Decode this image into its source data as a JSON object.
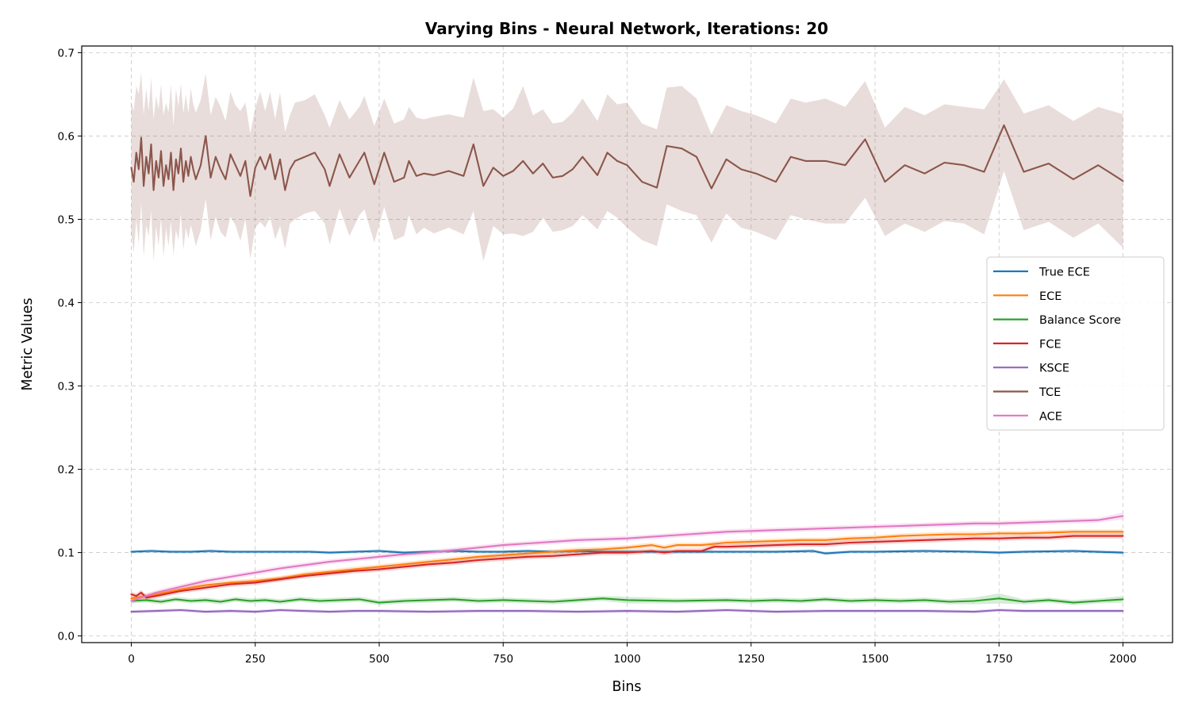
{
  "chart_data": {
    "type": "line",
    "title": "Varying Bins - Neural Network, Iterations: 20",
    "xlabel": "Bins",
    "ylabel": "Metric Values",
    "xlim": [
      -100,
      2100
    ],
    "ylim": [
      -0.008,
      0.708
    ],
    "xticks": [
      0,
      250,
      500,
      750,
      1000,
      1250,
      1500,
      1750,
      2000
    ],
    "xtick_labels": [
      "0",
      "250",
      "500",
      "750",
      "1000",
      "1250",
      "1500",
      "1750",
      "2000"
    ],
    "yticks": [
      0.0,
      0.1,
      0.2,
      0.3,
      0.4,
      0.5,
      0.6,
      0.7
    ],
    "ytick_labels": [
      "0.0",
      "0.1",
      "0.2",
      "0.3",
      "0.4",
      "0.5",
      "0.6",
      "0.7"
    ],
    "grid": true,
    "legend_position": "center-right",
    "series": [
      {
        "name": "True ECE",
        "color": "#1f77b4",
        "x": [
          0,
          40,
          80,
          120,
          160,
          200,
          240,
          280,
          320,
          360,
          400,
          450,
          500,
          550,
          600,
          650,
          700,
          750,
          800,
          850,
          900,
          950,
          1000,
          1100,
          1200,
          1300,
          1375,
          1400,
          1450,
          1500,
          1600,
          1700,
          1750,
          1800,
          1900,
          2000
        ],
        "y": [
          0.101,
          0.102,
          0.101,
          0.101,
          0.102,
          0.101,
          0.101,
          0.101,
          0.101,
          0.101,
          0.1,
          0.101,
          0.102,
          0.1,
          0.101,
          0.102,
          0.101,
          0.101,
          0.102,
          0.101,
          0.102,
          0.101,
          0.101,
          0.101,
          0.101,
          0.101,
          0.102,
          0.099,
          0.101,
          0.101,
          0.102,
          0.101,
          0.1,
          0.101,
          0.102,
          0.1
        ],
        "band": [
          0.002,
          0.002,
          0.002,
          0.002,
          0.002,
          0.002,
          0.002,
          0.002,
          0.002,
          0.002,
          0.002,
          0.002,
          0.002,
          0.002,
          0.002,
          0.002,
          0.002,
          0.002,
          0.002,
          0.002,
          0.002,
          0.002,
          0.002,
          0.002,
          0.002,
          0.002,
          0.002,
          0.002,
          0.002,
          0.002,
          0.002,
          0.002,
          0.002,
          0.002,
          0.002,
          0.002
        ]
      },
      {
        "name": "ECE",
        "color": "#ff7f0e",
        "x": [
          0,
          50,
          100,
          150,
          200,
          250,
          300,
          350,
          400,
          450,
          500,
          550,
          600,
          650,
          700,
          750,
          800,
          850,
          900,
          950,
          1000,
          1050,
          1075,
          1100,
          1150,
          1200,
          1250,
          1300,
          1350,
          1400,
          1450,
          1500,
          1550,
          1600,
          1650,
          1700,
          1750,
          1800,
          1850,
          1900,
          1950,
          2000
        ],
        "y": [
          0.045,
          0.05,
          0.056,
          0.061,
          0.064,
          0.066,
          0.069,
          0.074,
          0.077,
          0.08,
          0.083,
          0.086,
          0.089,
          0.092,
          0.095,
          0.097,
          0.099,
          0.101,
          0.103,
          0.104,
          0.106,
          0.109,
          0.106,
          0.109,
          0.109,
          0.112,
          0.113,
          0.114,
          0.115,
          0.115,
          0.117,
          0.118,
          0.12,
          0.121,
          0.122,
          0.122,
          0.123,
          0.123,
          0.124,
          0.125,
          0.125,
          0.125
        ],
        "band": [
          0.003,
          0.003,
          0.003,
          0.003,
          0.003,
          0.003,
          0.003,
          0.003,
          0.003,
          0.003,
          0.003,
          0.003,
          0.003,
          0.003,
          0.003,
          0.003,
          0.003,
          0.003,
          0.003,
          0.003,
          0.003,
          0.003,
          0.003,
          0.003,
          0.003,
          0.003,
          0.003,
          0.003,
          0.003,
          0.003,
          0.003,
          0.003,
          0.003,
          0.003,
          0.003,
          0.003,
          0.003,
          0.003,
          0.003,
          0.003,
          0.003,
          0.003
        ]
      },
      {
        "name": "Balance Score",
        "color": "#2ca02c",
        "x": [
          0,
          30,
          60,
          90,
          120,
          150,
          180,
          210,
          240,
          270,
          300,
          340,
          380,
          420,
          460,
          500,
          550,
          600,
          650,
          700,
          750,
          800,
          850,
          900,
          950,
          1000,
          1100,
          1200,
          1250,
          1300,
          1350,
          1400,
          1450,
          1500,
          1550,
          1600,
          1650,
          1700,
          1750,
          1800,
          1850,
          1900,
          1950,
          2000
        ],
        "y": [
          0.042,
          0.043,
          0.041,
          0.044,
          0.042,
          0.043,
          0.041,
          0.044,
          0.042,
          0.043,
          0.041,
          0.044,
          0.042,
          0.043,
          0.044,
          0.04,
          0.042,
          0.043,
          0.044,
          0.042,
          0.043,
          0.042,
          0.041,
          0.043,
          0.045,
          0.043,
          0.042,
          0.043,
          0.042,
          0.043,
          0.042,
          0.044,
          0.042,
          0.043,
          0.042,
          0.043,
          0.041,
          0.042,
          0.045,
          0.041,
          0.043,
          0.04,
          0.042,
          0.044
        ],
        "band": [
          0.003,
          0.003,
          0.003,
          0.003,
          0.003,
          0.003,
          0.003,
          0.003,
          0.003,
          0.003,
          0.003,
          0.003,
          0.003,
          0.003,
          0.003,
          0.003,
          0.003,
          0.003,
          0.003,
          0.003,
          0.003,
          0.003,
          0.003,
          0.003,
          0.003,
          0.004,
          0.003,
          0.003,
          0.003,
          0.003,
          0.003,
          0.003,
          0.003,
          0.003,
          0.003,
          0.003,
          0.003,
          0.004,
          0.006,
          0.003,
          0.003,
          0.003,
          0.003,
          0.004
        ]
      },
      {
        "name": "FCE",
        "color": "#d62728",
        "x": [
          0,
          10,
          20,
          30,
          50,
          100,
          150,
          200,
          250,
          300,
          350,
          400,
          450,
          500,
          550,
          600,
          650,
          700,
          750,
          800,
          850,
          900,
          950,
          1000,
          1050,
          1075,
          1100,
          1150,
          1175,
          1200,
          1250,
          1300,
          1350,
          1400,
          1450,
          1500,
          1550,
          1600,
          1650,
          1700,
          1750,
          1800,
          1850,
          1900,
          1950,
          2000
        ],
        "y": [
          0.05,
          0.048,
          0.052,
          0.046,
          0.048,
          0.054,
          0.058,
          0.062,
          0.064,
          0.068,
          0.072,
          0.075,
          0.078,
          0.08,
          0.083,
          0.086,
          0.088,
          0.091,
          0.093,
          0.095,
          0.096,
          0.098,
          0.1,
          0.1,
          0.102,
          0.1,
          0.102,
          0.102,
          0.107,
          0.107,
          0.108,
          0.109,
          0.11,
          0.11,
          0.112,
          0.113,
          0.114,
          0.115,
          0.116,
          0.117,
          0.117,
          0.118,
          0.118,
          0.12,
          0.12,
          0.12
        ],
        "band": [
          0.003,
          0.003,
          0.003,
          0.003,
          0.003,
          0.003,
          0.003,
          0.003,
          0.003,
          0.003,
          0.003,
          0.003,
          0.003,
          0.003,
          0.003,
          0.003,
          0.003,
          0.003,
          0.003,
          0.003,
          0.003,
          0.003,
          0.003,
          0.003,
          0.003,
          0.003,
          0.003,
          0.003,
          0.003,
          0.003,
          0.003,
          0.003,
          0.003,
          0.003,
          0.003,
          0.003,
          0.003,
          0.003,
          0.003,
          0.003,
          0.003,
          0.003,
          0.003,
          0.003,
          0.003,
          0.003
        ]
      },
      {
        "name": "KSCE",
        "color": "#9467bd",
        "x": [
          0,
          50,
          100,
          150,
          200,
          250,
          300,
          350,
          400,
          450,
          500,
          600,
          700,
          800,
          900,
          1000,
          1100,
          1200,
          1300,
          1400,
          1500,
          1600,
          1700,
          1750,
          1800,
          1900,
          2000
        ],
        "y": [
          0.029,
          0.03,
          0.031,
          0.029,
          0.03,
          0.029,
          0.031,
          0.03,
          0.029,
          0.03,
          0.03,
          0.029,
          0.03,
          0.03,
          0.029,
          0.03,
          0.029,
          0.031,
          0.029,
          0.03,
          0.03,
          0.03,
          0.029,
          0.031,
          0.03,
          0.03,
          0.03
        ],
        "band": [
          0.002,
          0.002,
          0.002,
          0.002,
          0.002,
          0.002,
          0.002,
          0.002,
          0.002,
          0.002,
          0.002,
          0.002,
          0.002,
          0.002,
          0.002,
          0.002,
          0.002,
          0.002,
          0.002,
          0.002,
          0.002,
          0.002,
          0.002,
          0.002,
          0.002,
          0.002,
          0.002
        ]
      },
      {
        "name": "TCE",
        "color": "#8c564b",
        "x": [
          0,
          5,
          10,
          15,
          20,
          25,
          30,
          35,
          40,
          45,
          50,
          55,
          60,
          65,
          70,
          75,
          80,
          85,
          90,
          95,
          100,
          105,
          110,
          115,
          120,
          125,
          130,
          140,
          150,
          160,
          170,
          180,
          190,
          200,
          210,
          220,
          230,
          240,
          250,
          260,
          270,
          280,
          290,
          300,
          310,
          320,
          330,
          350,
          370,
          390,
          400,
          420,
          440,
          460,
          470,
          490,
          510,
          530,
          550,
          560,
          575,
          590,
          610,
          640,
          670,
          690,
          710,
          730,
          750,
          770,
          790,
          810,
          830,
          850,
          870,
          890,
          910,
          940,
          960,
          980,
          1000,
          1030,
          1060,
          1080,
          1110,
          1140,
          1170,
          1200,
          1230,
          1260,
          1300,
          1330,
          1360,
          1400,
          1440,
          1480,
          1520,
          1560,
          1600,
          1640,
          1680,
          1720,
          1760,
          1800,
          1850,
          1900,
          1950,
          2000
        ],
        "y": [
          0.562,
          0.545,
          0.58,
          0.56,
          0.598,
          0.54,
          0.575,
          0.555,
          0.59,
          0.535,
          0.57,
          0.55,
          0.582,
          0.54,
          0.565,
          0.548,
          0.58,
          0.535,
          0.572,
          0.555,
          0.585,
          0.545,
          0.57,
          0.552,
          0.575,
          0.56,
          0.548,
          0.565,
          0.6,
          0.55,
          0.575,
          0.56,
          0.548,
          0.578,
          0.565,
          0.552,
          0.57,
          0.528,
          0.562,
          0.575,
          0.56,
          0.578,
          0.548,
          0.572,
          0.535,
          0.56,
          0.57,
          0.575,
          0.58,
          0.56,
          0.54,
          0.578,
          0.55,
          0.57,
          0.58,
          0.542,
          0.58,
          0.545,
          0.55,
          0.57,
          0.552,
          0.555,
          0.553,
          0.558,
          0.552,
          0.59,
          0.54,
          0.562,
          0.552,
          0.558,
          0.57,
          0.555,
          0.567,
          0.55,
          0.552,
          0.56,
          0.575,
          0.553,
          0.58,
          0.57,
          0.565,
          0.545,
          0.538,
          0.588,
          0.585,
          0.575,
          0.537,
          0.572,
          0.56,
          0.555,
          0.545,
          0.575,
          0.57,
          0.57,
          0.565,
          0.596,
          0.545,
          0.565,
          0.555,
          0.568,
          0.565,
          0.557,
          0.613,
          0.557,
          0.567,
          0.548,
          0.565,
          0.546
        ],
        "band": [
          0.08,
          0.085,
          0.08,
          0.09,
          0.078,
          0.085,
          0.082,
          0.075,
          0.08,
          0.085,
          0.078,
          0.082,
          0.08,
          0.085,
          0.075,
          0.08,
          0.082,
          0.078,
          0.085,
          0.08,
          0.078,
          0.082,
          0.08,
          0.075,
          0.082,
          0.078,
          0.08,
          0.078,
          0.075,
          0.075,
          0.072,
          0.075,
          0.07,
          0.075,
          0.072,
          0.078,
          0.07,
          0.075,
          0.072,
          0.078,
          0.07,
          0.075,
          0.072,
          0.08,
          0.07,
          0.065,
          0.07,
          0.068,
          0.07,
          0.065,
          0.07,
          0.065,
          0.07,
          0.065,
          0.068,
          0.07,
          0.065,
          0.07,
          0.07,
          0.065,
          0.07,
          0.065,
          0.07,
          0.068,
          0.07,
          0.08,
          0.09,
          0.07,
          0.07,
          0.075,
          0.09,
          0.07,
          0.065,
          0.065,
          0.065,
          0.068,
          0.07,
          0.065,
          0.07,
          0.068,
          0.075,
          0.07,
          0.07,
          0.07,
          0.075,
          0.07,
          0.065,
          0.065,
          0.07,
          0.07,
          0.07,
          0.07,
          0.07,
          0.075,
          0.07,
          0.07,
          0.065,
          0.07,
          0.07,
          0.07,
          0.07,
          0.075,
          0.055,
          0.07,
          0.07,
          0.07,
          0.07,
          0.08
        ]
      },
      {
        "name": "ACE",
        "color": "#e377c2",
        "x": [
          0,
          50,
          100,
          150,
          200,
          250,
          300,
          350,
          400,
          450,
          500,
          550,
          600,
          650,
          700,
          750,
          800,
          850,
          900,
          950,
          1000,
          1050,
          1100,
          1150,
          1200,
          1250,
          1300,
          1350,
          1400,
          1450,
          1500,
          1550,
          1600,
          1650,
          1700,
          1750,
          1800,
          1850,
          1900,
          1950,
          2000
        ],
        "y": [
          0.042,
          0.052,
          0.059,
          0.066,
          0.071,
          0.076,
          0.081,
          0.085,
          0.089,
          0.092,
          0.095,
          0.098,
          0.1,
          0.103,
          0.106,
          0.109,
          0.111,
          0.113,
          0.115,
          0.116,
          0.117,
          0.119,
          0.121,
          0.123,
          0.125,
          0.126,
          0.127,
          0.128,
          0.129,
          0.13,
          0.131,
          0.132,
          0.133,
          0.134,
          0.135,
          0.135,
          0.136,
          0.137,
          0.138,
          0.139,
          0.144
        ],
        "band": [
          0.003,
          0.003,
          0.003,
          0.003,
          0.003,
          0.003,
          0.003,
          0.003,
          0.003,
          0.003,
          0.003,
          0.003,
          0.003,
          0.003,
          0.003,
          0.003,
          0.003,
          0.003,
          0.003,
          0.003,
          0.003,
          0.003,
          0.003,
          0.003,
          0.003,
          0.003,
          0.003,
          0.003,
          0.003,
          0.003,
          0.003,
          0.003,
          0.003,
          0.003,
          0.003,
          0.003,
          0.003,
          0.003,
          0.003,
          0.003,
          0.004
        ]
      }
    ]
  }
}
